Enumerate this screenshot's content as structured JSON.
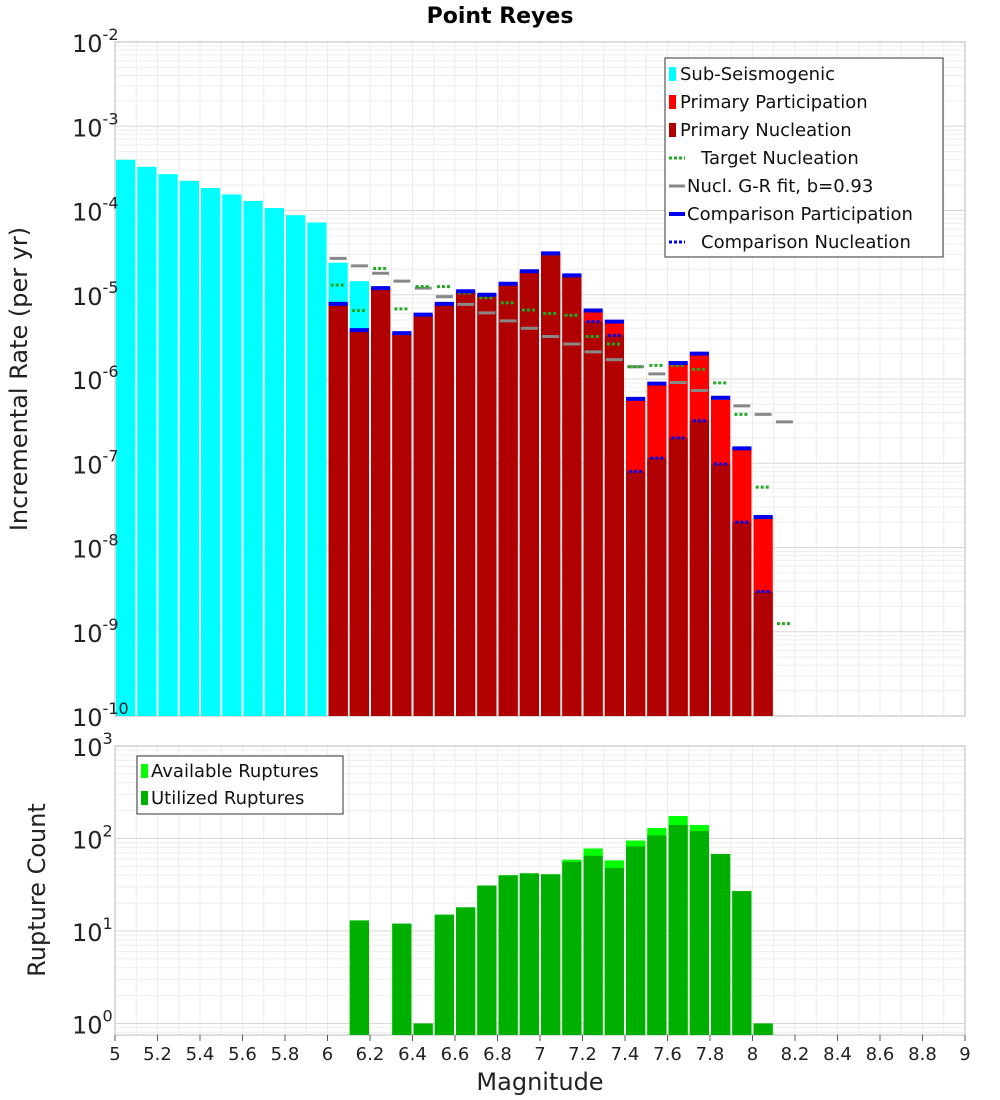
{
  "chart_data": [
    {
      "type": "bar",
      "title": "Point Reyes",
      "xlabel": "",
      "ylabel": "Incremental Rate (per yr)",
      "yscale": "log",
      "xlim": [
        5,
        9
      ],
      "ylim_exp": [
        -10,
        -2
      ],
      "ytick_base": "10",
      "ytick_exponents": [
        -2,
        -3,
        -4,
        -5,
        -6,
        -7,
        -8,
        -9,
        -10
      ],
      "legend_position": "top-right",
      "legend": [
        {
          "label": "Sub-Seismogenic",
          "color": "#00ffff",
          "style": "box"
        },
        {
          "label": "Primary Participation",
          "color": "#ff0000",
          "style": "box"
        },
        {
          "label": "Primary Nucleation",
          "color": "#b00000",
          "style": "box"
        },
        {
          "label": "Target Nucleation",
          "color": "#22aa22",
          "style": "dotted"
        },
        {
          "label": "Nucl. G-R fit, b=0.93",
          "color": "#888888",
          "style": "solid"
        },
        {
          "label": "Comparison Participation",
          "color": "#0000ee",
          "style": "thick"
        },
        {
          "label": "Comparison Nucleation",
          "color": "#0000ee",
          "style": "dotted"
        }
      ],
      "colors": {
        "sub": "#00ffff",
        "participation": "#ff0000",
        "nucleation": "#b00000",
        "target": "#22aa22",
        "gr": "#888888",
        "comparison": "#0000ee"
      },
      "sub_seismogenic": {
        "x": [
          5.05,
          5.15,
          5.25,
          5.35,
          5.45,
          5.55,
          5.65,
          5.75,
          5.85,
          5.95,
          6.05,
          6.15
        ],
        "values": [
          0.0004,
          0.00033,
          0.00027,
          0.000225,
          0.000185,
          0.000155,
          0.00013,
          0.000107,
          8.8e-05,
          7.2e-05,
          2.4e-05,
          1.45e-05
        ]
      },
      "primary": {
        "x": [
          6.05,
          6.15,
          6.25,
          6.35,
          6.45,
          6.55,
          6.65,
          6.75,
          6.85,
          6.95,
          7.05,
          7.15,
          7.25,
          7.35,
          7.45,
          7.55,
          7.65,
          7.75,
          7.85,
          7.95,
          8.05
        ],
        "participation": [
          7.8e-06,
          3.8e-06,
          1.2e-05,
          3.5e-06,
          5.8e-06,
          7.8e-06,
          1.1e-05,
          1e-05,
          1.35e-05,
          1.9e-05,
          3.1e-05,
          1.7e-05,
          6.5e-06,
          4.8e-06,
          5.8e-07,
          8.8e-07,
          1.55e-06,
          2e-06,
          6e-07,
          1.5e-07,
          2.3e-08
        ],
        "nucleation": [
          7.8e-06,
          3.8e-06,
          1.2e-05,
          3.5e-06,
          5.8e-06,
          7.8e-06,
          1.1e-05,
          1e-05,
          1.35e-05,
          1.9e-05,
          3.1e-05,
          1.7e-05,
          4.8e-06,
          3.3e-06,
          8e-08,
          1.15e-07,
          2e-07,
          3.2e-07,
          9.8e-08,
          2e-08,
          3e-09
        ],
        "target_nucleation": [
          1.3e-05,
          6.5e-06,
          2.05e-05,
          6.8e-06,
          1.25e-05,
          1.25e-05,
          1.05e-05,
          9.2e-06,
          8e-06,
          6.6e-06,
          6e-06,
          5.7e-06,
          3.2e-06,
          2.6e-06,
          1.4e-06,
          1.45e-06,
          1.45e-06,
          1.3e-06,
          9e-07,
          3.8e-07,
          5.2e-08,
          1.25e-09
        ],
        "target_x": [
          6.05,
          6.15,
          6.25,
          6.35,
          6.45,
          6.55,
          6.65,
          6.75,
          6.85,
          6.95,
          7.05,
          7.15,
          7.25,
          7.35,
          7.45,
          7.55,
          7.65,
          7.75,
          7.85,
          7.95,
          8.05,
          8.15
        ],
        "gr_fit": [
          2.7e-05,
          2.2e-05,
          1.8e-05,
          1.45e-05,
          1.2e-05,
          9.5e-06,
          7.7e-06,
          6.1e-06,
          4.9e-06,
          4e-06,
          3.2e-06,
          2.6e-06,
          2.1e-06,
          1.7e-06,
          1.4e-06,
          1.15e-06,
          9.1e-07,
          7.3e-07,
          5.9e-07,
          4.8e-07,
          3.8e-07,
          3.1e-07
        ],
        "gr_x": [
          6.05,
          6.15,
          6.25,
          6.35,
          6.45,
          6.55,
          6.65,
          6.75,
          6.85,
          6.95,
          7.05,
          7.15,
          7.25,
          7.35,
          7.45,
          7.55,
          7.65,
          7.75,
          7.85,
          7.95,
          8.05,
          8.15
        ],
        "comparison_participation": [
          7.8e-06,
          3.8e-06,
          1.2e-05,
          3.5e-06,
          5.8e-06,
          7.8e-06,
          1.1e-05,
          1e-05,
          1.35e-05,
          1.9e-05,
          3.1e-05,
          1.7e-05,
          6.5e-06,
          4.8e-06,
          5.8e-07,
          8.8e-07,
          1.55e-06,
          2e-06,
          6e-07,
          1.5e-07,
          2.3e-08
        ],
        "comparison_nucleation": [
          7.8e-06,
          3.8e-06,
          1.2e-05,
          3.5e-06,
          5.8e-06,
          7.8e-06,
          1.1e-05,
          1e-05,
          1.35e-05,
          1.9e-05,
          3.1e-05,
          1.7e-05,
          4.8e-06,
          3.3e-06,
          8e-08,
          1.15e-07,
          2e-07,
          3.2e-07,
          9.8e-08,
          2e-08,
          3e-09
        ]
      }
    },
    {
      "type": "bar",
      "title": "",
      "xlabel": "Magnitude",
      "ylabel": "Rupture Count",
      "yscale": "log",
      "xlim": [
        5,
        9
      ],
      "ylim": [
        0.75,
        1000
      ],
      "ytick_base": "10",
      "ytick_exponents": [
        3,
        2,
        1,
        0
      ],
      "xticks": [
        "5",
        "5.2",
        "5.4",
        "5.6",
        "5.8",
        "6",
        "6.2",
        "6.4",
        "6.6",
        "6.8",
        "7",
        "7.2",
        "7.4",
        "7.6",
        "7.8",
        "8",
        "8.2",
        "8.4",
        "8.6",
        "8.8",
        "9"
      ],
      "legend_position": "top-left",
      "legend": [
        {
          "label": "Available Ruptures",
          "color": "#00ff00",
          "style": "box"
        },
        {
          "label": "Utilized Ruptures",
          "color": "#00b000",
          "style": "box"
        }
      ],
      "colors": {
        "available": "#00ff00",
        "utilized": "#00b000"
      },
      "x": [
        6.15,
        6.35,
        6.45,
        6.55,
        6.65,
        6.75,
        6.85,
        6.95,
        7.05,
        7.15,
        7.25,
        7.35,
        7.45,
        7.55,
        7.65,
        7.75,
        7.85,
        7.95,
        8.05
      ],
      "available": [
        13,
        12,
        1,
        15,
        18,
        31,
        40,
        42,
        41,
        59,
        78,
        58,
        95,
        130,
        175,
        140,
        68,
        27,
        1
      ],
      "utilized": [
        13,
        12,
        1,
        15,
        18,
        31,
        40,
        42,
        41,
        56,
        65,
        48,
        82,
        108,
        140,
        120,
        68,
        27,
        1
      ]
    }
  ]
}
